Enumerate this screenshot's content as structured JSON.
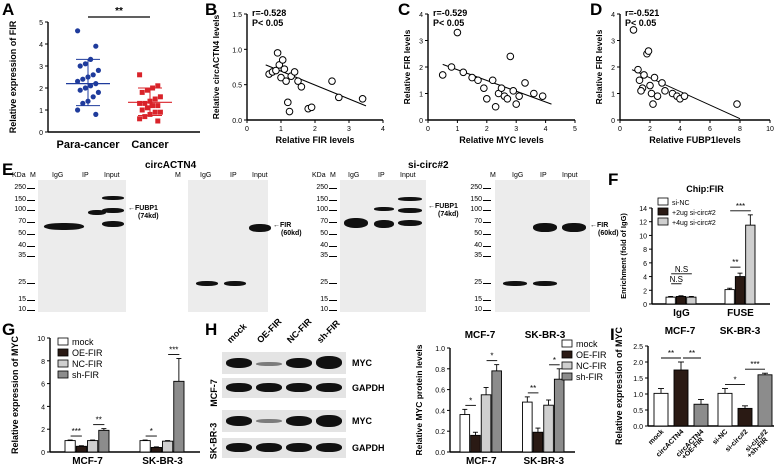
{
  "panels": {
    "A": "A",
    "B": "B",
    "C": "C",
    "D": "D",
    "E": "E",
    "F": "F",
    "G": "G",
    "H": "H",
    "I": "I"
  },
  "colors": {
    "blue": "#1f3b9c",
    "red": "#d9232a",
    "black": "#000000",
    "dark_bar": "#2a1a14",
    "light_gray": "#cfcfcf",
    "mid_gray": "#8c8c8c"
  },
  "chart_data": [
    {
      "id": "A",
      "type": "scatter",
      "ylabel": "Relative expression of FIR",
      "categories": [
        "Para-cancer",
        "Cancer"
      ],
      "ylim": [
        0,
        5
      ],
      "yticks": [
        0,
        1,
        2,
        3,
        4,
        5
      ],
      "significance": "**",
      "series": [
        {
          "name": "Para-cancer",
          "color": "#1f3b9c",
          "mean": 2.2,
          "sd_low": 1.2,
          "sd_high": 3.3,
          "points": [
            4.6,
            3.9,
            3.3,
            3.1,
            3.0,
            2.8,
            2.6,
            2.5,
            2.4,
            2.3,
            2.2,
            2.1,
            2.0,
            1.9,
            1.8,
            1.6,
            1.4,
            1.3,
            1.0,
            0.8
          ]
        },
        {
          "name": "Cancer",
          "color": "#d9232a",
          "mean": 1.35,
          "sd_low": 0.75,
          "sd_high": 2.0,
          "points": [
            2.6,
            2.1,
            2.0,
            1.9,
            1.8,
            1.6,
            1.5,
            1.4,
            1.3,
            1.3,
            1.2,
            1.2,
            1.1,
            1.0,
            0.9,
            0.9,
            0.8,
            0.7,
            0.6,
            0.5
          ]
        }
      ]
    },
    {
      "id": "B",
      "type": "scatter",
      "xlabel": "Relative FIR levels",
      "ylabel": "Relative circACTN4 levels",
      "annotation": [
        "r=-0.528",
        "P< 0.05"
      ],
      "xlim": [
        0,
        4
      ],
      "ylim": [
        0,
        1.5
      ],
      "xticks": [
        0,
        1,
        2,
        3,
        4
      ],
      "yticks": [
        0.0,
        0.5,
        1.0,
        1.5
      ],
      "points": [
        [
          0.65,
          0.65
        ],
        [
          0.75,
          0.68
        ],
        [
          0.85,
          0.7
        ],
        [
          0.9,
          0.95
        ],
        [
          0.95,
          0.78
        ],
        [
          1.0,
          0.6
        ],
        [
          1.05,
          0.85
        ],
        [
          1.1,
          0.72
        ],
        [
          1.15,
          0.55
        ],
        [
          1.2,
          0.25
        ],
        [
          1.25,
          0.12
        ],
        [
          1.3,
          0.62
        ],
        [
          1.4,
          0.68
        ],
        [
          1.5,
          0.55
        ],
        [
          1.6,
          0.47
        ],
        [
          1.8,
          0.16
        ],
        [
          1.9,
          0.18
        ],
        [
          2.5,
          0.55
        ],
        [
          2.7,
          0.32
        ],
        [
          3.4,
          0.3
        ]
      ],
      "fit": [
        [
          0.55,
          0.78
        ],
        [
          3.5,
          0.2
        ]
      ]
    },
    {
      "id": "C",
      "type": "scatter",
      "xlabel": "Relative MYC levels",
      "ylabel": "Relative FIR levels",
      "annotation": [
        "r=-0.529",
        "P< 0.05"
      ],
      "xlim": [
        0,
        5
      ],
      "ylim": [
        0,
        4
      ],
      "xticks": [
        0,
        1,
        2,
        3,
        4,
        5
      ],
      "yticks": [
        0,
        1,
        2,
        3,
        4
      ],
      "points": [
        [
          0.5,
          1.7
        ],
        [
          0.8,
          2.0
        ],
        [
          1.0,
          3.3
        ],
        [
          1.2,
          1.8
        ],
        [
          1.5,
          1.6
        ],
        [
          1.7,
          1.5
        ],
        [
          1.9,
          1.2
        ],
        [
          2.0,
          0.8
        ],
        [
          2.2,
          1.5
        ],
        [
          2.4,
          1.0
        ],
        [
          2.5,
          1.2
        ],
        [
          2.6,
          0.9
        ],
        [
          2.7,
          0.8
        ],
        [
          2.8,
          2.4
        ],
        [
          2.9,
          1.1
        ],
        [
          3.0,
          0.6
        ],
        [
          3.1,
          0.9
        ],
        [
          3.3,
          1.4
        ],
        [
          3.6,
          1.0
        ],
        [
          3.9,
          0.9
        ],
        [
          2.3,
          0.5
        ]
      ],
      "fit": [
        [
          0.5,
          2.1
        ],
        [
          4.2,
          0.6
        ]
      ]
    },
    {
      "id": "D",
      "type": "scatter",
      "xlabel": "Relative FUBP1levels",
      "ylabel": "Relative FIR levels",
      "annotation": [
        "r=-0.521",
        "P< 0.05"
      ],
      "xlim": [
        0,
        10
      ],
      "ylim": [
        0,
        4
      ],
      "xticks": [
        0,
        2,
        4,
        6,
        8,
        10
      ],
      "yticks": [
        0,
        1,
        2,
        3,
        4
      ],
      "points": [
        [
          0.9,
          3.4
        ],
        [
          1.2,
          1.9
        ],
        [
          1.3,
          1.5
        ],
        [
          1.5,
          1.2
        ],
        [
          1.6,
          1.7
        ],
        [
          1.8,
          2.5
        ],
        [
          1.9,
          2.6
        ],
        [
          2.0,
          1.3
        ],
        [
          2.1,
          1.0
        ],
        [
          2.3,
          1.6
        ],
        [
          2.5,
          0.9
        ],
        [
          2.8,
          1.4
        ],
        [
          3.0,
          1.1
        ],
        [
          3.5,
          1.0
        ],
        [
          3.8,
          0.9
        ],
        [
          4.0,
          0.8
        ],
        [
          1.4,
          1.1
        ],
        [
          2.2,
          0.6
        ],
        [
          4.3,
          0.9
        ],
        [
          7.8,
          0.6
        ]
      ],
      "fit": [
        [
          0.8,
          1.9
        ],
        [
          8.0,
          0.05
        ]
      ]
    },
    {
      "id": "F",
      "type": "bar",
      "title": "Chip:FIR",
      "ylabel": "Enrichment (fold of IgG)",
      "categories": [
        "IgG",
        "FUSE"
      ],
      "ylim": [
        0,
        14
      ],
      "yticks": [
        0,
        2,
        4,
        6,
        8,
        10,
        12,
        14
      ],
      "series": [
        {
          "name": "si-NC",
          "values": [
            1.0,
            2.1
          ],
          "errors": [
            0.1,
            0.2
          ]
        },
        {
          "name": "+2ug si-circ#2",
          "values": [
            1.1,
            4.0
          ],
          "errors": [
            0.1,
            0.5
          ]
        },
        {
          "name": "+4ug si-circ#2",
          "values": [
            1.0,
            11.5
          ],
          "errors": [
            0.1,
            1.5
          ]
        }
      ],
      "annotations": [
        "N.S",
        "N.S",
        "**",
        "***"
      ]
    },
    {
      "id": "G",
      "type": "bar",
      "ylabel": "Relative expression of MYC",
      "categories": [
        "MCF-7",
        "SK-BR-3"
      ],
      "ylim": [
        0,
        10
      ],
      "yticks": [
        0,
        2,
        4,
        6,
        8,
        10
      ],
      "series": [
        {
          "name": "mock",
          "values": [
            1.0,
            1.0
          ],
          "errors": [
            0.05,
            0.05
          ]
        },
        {
          "name": "OE-FIR",
          "values": [
            0.5,
            0.4
          ],
          "errors": [
            0.05,
            0.05
          ]
        },
        {
          "name": "NC-FIR",
          "values": [
            1.0,
            0.95
          ],
          "errors": [
            0.05,
            0.05
          ]
        },
        {
          "name": "sh-FIR",
          "values": [
            1.9,
            6.2
          ],
          "errors": [
            0.15,
            2.0
          ]
        }
      ],
      "annotations": [
        "***",
        "**",
        "*",
        "***"
      ]
    },
    {
      "id": "H",
      "type": "bar",
      "ylabel": "Relative MYC protein levels",
      "categories": [
        "MCF-7",
        "SK-BR-3"
      ],
      "ylim": [
        0,
        1.0
      ],
      "yticks": [
        0.0,
        0.2,
        0.4,
        0.6,
        0.8,
        1.0
      ],
      "series": [
        {
          "name": "mock",
          "values": [
            0.36,
            0.48
          ],
          "errors": [
            0.05,
            0.05
          ]
        },
        {
          "name": "OE-FIR",
          "values": [
            0.16,
            0.19
          ],
          "errors": [
            0.03,
            0.04
          ]
        },
        {
          "name": "NC-FIR",
          "values": [
            0.55,
            0.45
          ],
          "errors": [
            0.07,
            0.05
          ]
        },
        {
          "name": "sh-FIR",
          "values": [
            0.78,
            0.7
          ],
          "errors": [
            0.06,
            0.1
          ]
        }
      ],
      "annotations": [
        "*",
        "*",
        "**",
        "*"
      ]
    },
    {
      "id": "I",
      "type": "bar",
      "ylabel": "Relative expression of MYC",
      "ylim": [
        0,
        2.5
      ],
      "yticks": [
        0.0,
        0.5,
        1.0,
        1.5,
        2.0,
        2.5
      ],
      "group_labels": [
        "MCF-7",
        "SK-BR-3"
      ],
      "categories": [
        "mock",
        "circACTN4",
        "circACTN4 +OE-FIR",
        "si-NC",
        "si-circ#2",
        "si-circ#2 +sh-FIR"
      ],
      "values": [
        1.02,
        1.75,
        0.68,
        1.02,
        0.55,
        1.6
      ],
      "errors": [
        0.15,
        0.25,
        0.15,
        0.15,
        0.08,
        0.05
      ],
      "colors": [
        "#ffffff",
        "#2a1a14",
        "#8c8c8c",
        "#ffffff",
        "#2a1a14",
        "#8c8c8c"
      ],
      "annotations": [
        "**",
        "**",
        "*",
        "***"
      ]
    }
  ],
  "blots": {
    "E_title_left": "circACTN4",
    "E_title_right": "si-circ#2",
    "kda": "KDa",
    "marker": "M",
    "lanes": [
      "IgG",
      "IP",
      "Input"
    ],
    "mw_left": [
      "250",
      "150",
      "100",
      "70",
      "50",
      "40",
      "35",
      "25",
      "15",
      "10"
    ],
    "mw_right": [
      "250",
      "150",
      "100",
      "70",
      "50",
      "40",
      "35",
      "25",
      "15",
      "10"
    ],
    "fubp1": "FUBP1",
    "fubp1_kd": "(74kd)",
    "fir": "FIR",
    "fir_kd": "(60kd)",
    "H_lanes": [
      "mock",
      "OE-FIR",
      "NC-FIR",
      "sh-FIR"
    ],
    "H_cells": [
      "MCF-7",
      "SK-BR-3"
    ],
    "H_proteins": [
      "MYC",
      "GAPDH",
      "MYC",
      "GAPDH"
    ]
  },
  "H_chart_header": [
    "MCF-7",
    "SK-BR-3"
  ]
}
